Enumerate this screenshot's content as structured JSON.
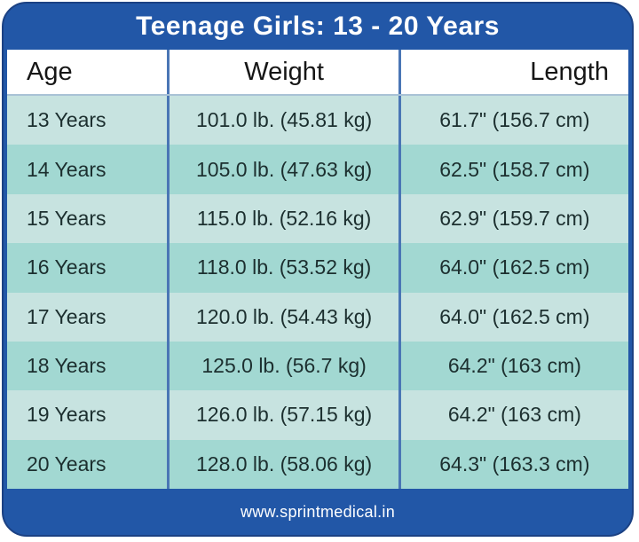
{
  "card": {
    "title": "Teenage Girls: 13 - 20 Years",
    "footer_url": "www.sprintmedical.in"
  },
  "table": {
    "columns": [
      "Age",
      "Weight",
      "Length"
    ],
    "rows": [
      {
        "age": "13 Years",
        "weight": "101.0 lb. (45.81 kg)",
        "length": "61.7\" (156.7 cm)"
      },
      {
        "age": "14 Years",
        "weight": "105.0 lb. (47.63 kg)",
        "length": "62.5\" (158.7 cm)"
      },
      {
        "age": "15 Years",
        "weight": "115.0 lb. (52.16 kg)",
        "length": "62.9\" (159.7 cm)"
      },
      {
        "age": "16 Years",
        "weight": "118.0 lb. (53.52 kg)",
        "length": "64.0\" (162.5 cm)"
      },
      {
        "age": "17 Years",
        "weight": "120.0 lb. (54.43 kg)",
        "length": "64.0\" (162.5 cm)"
      },
      {
        "age": "18 Years",
        "weight": "125.0 lb. (56.7 kg)",
        "length": "64.2\" (163 cm)"
      },
      {
        "age": "19 Years",
        "weight": "126.0 lb. (57.15 kg)",
        "length": "64.2\" (163 cm)"
      },
      {
        "age": "20 Years",
        "weight": "128.0 lb. (58.06 kg)",
        "length": "64.3\" (163.3 cm)"
      }
    ]
  },
  "colors": {
    "card_blue": "#2257a7",
    "card_border_navy": "#1b4183",
    "header_bg": "#ffffff",
    "row_light_teal": "#c7e3e0",
    "row_dark_teal": "#a2d8d2",
    "column_divider_blue": "#4a76b5",
    "title_text": "#ffffff",
    "body_text": "#1c2f2f"
  },
  "chart_data": {
    "type": "table",
    "title": "Teenage Girls: 13 - 20 Years",
    "columns": [
      "Age",
      "Weight",
      "Length"
    ],
    "rows": [
      [
        "13 Years",
        "101.0 lb. (45.81 kg)",
        "61.7\" (156.7 cm)"
      ],
      [
        "14 Years",
        "105.0 lb. (47.63 kg)",
        "62.5\" (158.7 cm)"
      ],
      [
        "15 Years",
        "115.0 lb. (52.16 kg)",
        "62.9\" (159.7 cm)"
      ],
      [
        "16 Years",
        "118.0 lb. (53.52 kg)",
        "64.0\" (162.5 cm)"
      ],
      [
        "17 Years",
        "120.0 lb. (54.43 kg)",
        "64.0\" (162.5 cm)"
      ],
      [
        "18 Years",
        "125.0 lb. (56.7 kg)",
        "64.2\" (163 cm)"
      ],
      [
        "19 Years",
        "126.0 lb. (57.15 kg)",
        "64.2\" (163 cm)"
      ],
      [
        "20 Years",
        "128.0 lb. (58.06 kg)",
        "64.3\" (163.3 cm)"
      ]
    ],
    "series": [
      {
        "name": "age_years",
        "values": [
          13,
          14,
          15,
          16,
          17,
          18,
          19,
          20
        ]
      },
      {
        "name": "weight_lb",
        "values": [
          101.0,
          105.0,
          115.0,
          118.0,
          120.0,
          125.0,
          126.0,
          128.0
        ]
      },
      {
        "name": "weight_kg",
        "values": [
          45.81,
          47.63,
          52.16,
          53.52,
          54.43,
          56.7,
          57.15,
          58.06
        ]
      },
      {
        "name": "length_in",
        "values": [
          61.7,
          62.5,
          62.9,
          64.0,
          64.0,
          64.2,
          64.2,
          64.3
        ]
      },
      {
        "name": "length_cm",
        "values": [
          156.7,
          158.7,
          159.7,
          162.5,
          162.5,
          163,
          163,
          163.3
        ]
      }
    ],
    "footer": "www.sprintmedical.in"
  }
}
